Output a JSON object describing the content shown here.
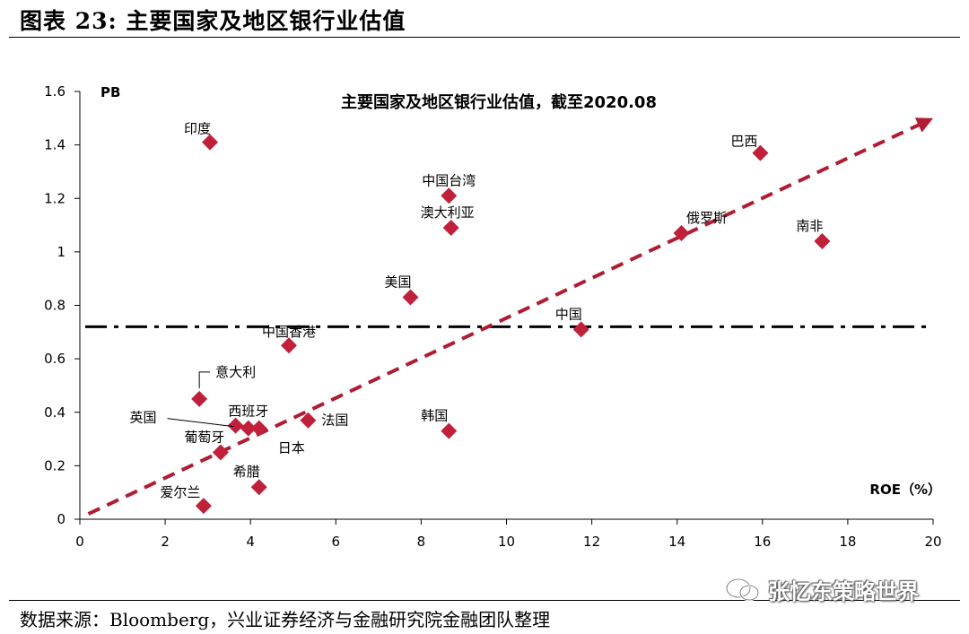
{
  "figure_title": "图表 23: 主要国家及地区银行业估值",
  "source_text": "数据来源：Bloomberg，兴业证券经济与金融研究院金融团队整理",
  "watermark": {
    "text": "张忆东策略世界",
    "icon": "wechat-icon"
  },
  "colors": {
    "marker": "#c0203a",
    "trendline": "#b01c32",
    "average_line": "#000000"
  },
  "chart_data": {
    "type": "scatter",
    "title": "主要国家及地区银行业估值，截至2020.08",
    "xlabel": "ROE（%）",
    "ylabel": "PB",
    "xlim": [
      0,
      20
    ],
    "ylim": [
      0,
      1.6
    ],
    "x_ticks": [
      "0",
      "2",
      "4",
      "6",
      "8",
      "10",
      "12",
      "14",
      "16",
      "18",
      "20"
    ],
    "y_ticks": [
      "0",
      "0.2",
      "0.4",
      "0.6",
      "0.8",
      "1",
      "1.2",
      "1.4",
      "1.6"
    ],
    "grid": false,
    "points": [
      {
        "label": "印度",
        "x": 3.05,
        "y": 1.41
      },
      {
        "label": "巴西",
        "x": 15.95,
        "y": 1.37
      },
      {
        "label": "中国台湾",
        "x": 8.65,
        "y": 1.21
      },
      {
        "label": "澳大利亚",
        "x": 8.7,
        "y": 1.09
      },
      {
        "label": "俄罗斯",
        "x": 14.1,
        "y": 1.07
      },
      {
        "label": "南非",
        "x": 17.4,
        "y": 1.04
      },
      {
        "label": "美国",
        "x": 7.75,
        "y": 0.83
      },
      {
        "label": "中国",
        "x": 11.75,
        "y": 0.71
      },
      {
        "label": "中国香港",
        "x": 4.9,
        "y": 0.65
      },
      {
        "label": "意大利",
        "x": 2.8,
        "y": 0.45
      },
      {
        "label": "英国",
        "x": 3.65,
        "y": 0.35
      },
      {
        "label": "西班牙",
        "x": 3.95,
        "y": 0.34
      },
      {
        "label": "日本",
        "x": 4.2,
        "y": 0.34
      },
      {
        "label": "法国",
        "x": 5.35,
        "y": 0.37
      },
      {
        "label": "韩国",
        "x": 8.65,
        "y": 0.33
      },
      {
        "label": "葡萄牙",
        "x": 3.3,
        "y": 0.25
      },
      {
        "label": "希腊",
        "x": 4.2,
        "y": 0.12
      },
      {
        "label": "爱尔兰",
        "x": 2.9,
        "y": 0.05
      }
    ],
    "average_line": {
      "y": 0.72,
      "style": "dash-dot"
    },
    "trendline": {
      "x": [
        0.2,
        20
      ],
      "y": [
        0.02,
        1.5
      ],
      "style": "dashed",
      "arrow": true
    }
  }
}
